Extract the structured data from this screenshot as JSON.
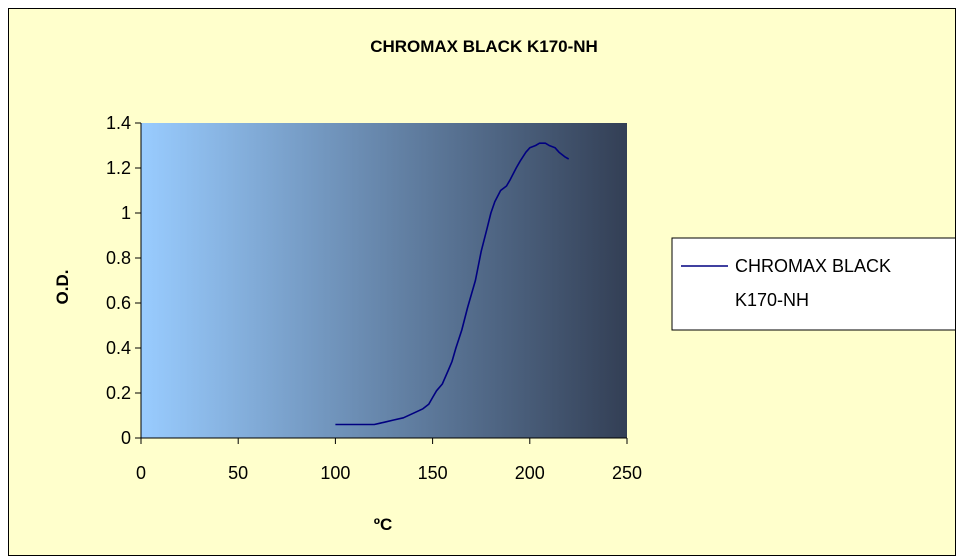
{
  "chart_data": {
    "type": "line",
    "title": "CHROMAX BLACK K170-NH",
    "xlabel": "ºC",
    "ylabel": "O.D.",
    "xlim": [
      0,
      250
    ],
    "ylim": [
      0,
      1.4
    ],
    "x_ticks": [
      "0",
      "50",
      "100",
      "150",
      "200",
      "250"
    ],
    "y_ticks": [
      "0",
      "0.2",
      "0.4",
      "0.6",
      "0.8",
      "1",
      "1.2",
      "1.4"
    ],
    "grid": false,
    "legend_position": "right",
    "legend_lines": [
      "CHROMAX BLACK",
      "K170-NH"
    ],
    "series": [
      {
        "name": "CHROMAX BLACK K170-NH",
        "color": "#000080",
        "x": [
          100,
          110,
          120,
          125,
          130,
          135,
          140,
          145,
          148,
          150,
          152,
          155,
          158,
          160,
          162,
          165,
          168,
          170,
          172,
          175,
          178,
          180,
          182,
          185,
          188,
          190,
          193,
          195,
          198,
          200,
          203,
          205,
          208,
          210,
          213,
          215,
          218,
          220
        ],
        "y": [
          0.06,
          0.06,
          0.06,
          0.07,
          0.08,
          0.09,
          0.11,
          0.13,
          0.15,
          0.18,
          0.21,
          0.24,
          0.3,
          0.34,
          0.4,
          0.48,
          0.58,
          0.64,
          0.7,
          0.83,
          0.93,
          1.0,
          1.05,
          1.1,
          1.12,
          1.15,
          1.2,
          1.23,
          1.27,
          1.29,
          1.3,
          1.31,
          1.31,
          1.3,
          1.29,
          1.27,
          1.25,
          1.24
        ]
      }
    ],
    "colors": {
      "background": "#FFFFCC",
      "plot_gradient_left": "#99CCFF",
      "plot_gradient_right": "#333F55",
      "line": "#000080"
    }
  }
}
